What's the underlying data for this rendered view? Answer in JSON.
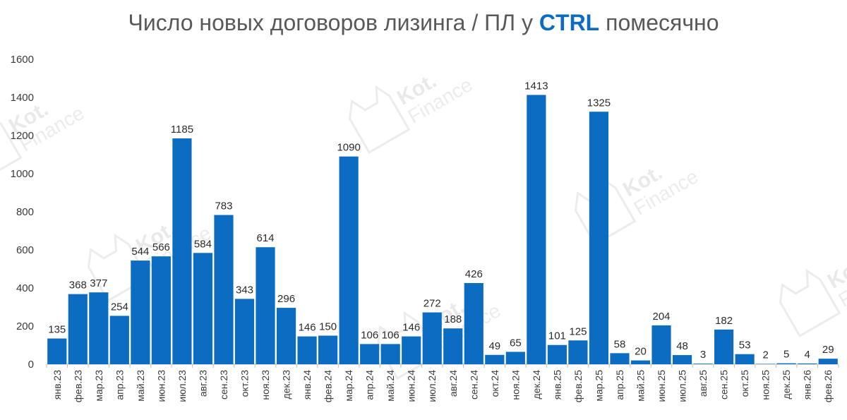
{
  "chart_data": {
    "type": "bar",
    "title": {
      "prefix": "Число новых договоров лизинга / ПЛ у ",
      "brand": "CTRL",
      "suffix": " помесячно"
    },
    "xlabel": "",
    "ylabel": "",
    "ylim": [
      0,
      1600
    ],
    "yticks": [
      0,
      200,
      400,
      600,
      800,
      1000,
      1200,
      1400,
      1600
    ],
    "grid": false,
    "legend": "none",
    "bar_color": "#0b6cc2",
    "brand_color": "#0b6cc2",
    "categories": [
      "янв.23",
      "фев.23",
      "мар.23",
      "апр.23",
      "май.23",
      "июн.23",
      "июл.23",
      "авг.23",
      "сен.23",
      "окт.23",
      "ноя.23",
      "дек.23",
      "янв.24",
      "фев.24",
      "мар.24",
      "апр.24",
      "май.24",
      "июн.24",
      "июл.24",
      "авг.24",
      "сен.24",
      "окт.24",
      "ноя.24",
      "дек.24",
      "янв.25",
      "фев.25",
      "мар.25",
      "апр.25",
      "май.25",
      "июн.25",
      "июл.25",
      "авг.25",
      "сен.25",
      "окт.25",
      "ноя.25",
      "дек.25",
      "янв.26",
      "фев.26"
    ],
    "values": [
      135,
      368,
      377,
      254,
      544,
      566,
      1185,
      584,
      783,
      343,
      614,
      296,
      146,
      150,
      1090,
      106,
      106,
      146,
      272,
      188,
      426,
      49,
      65,
      1413,
      101,
      125,
      1325,
      58,
      20,
      204,
      48,
      3,
      182,
      53,
      2,
      5,
      4,
      29
    ]
  },
  "watermark": {
    "line1": "Kot.",
    "line2": "Finance",
    "color": "#e6e6e6"
  }
}
